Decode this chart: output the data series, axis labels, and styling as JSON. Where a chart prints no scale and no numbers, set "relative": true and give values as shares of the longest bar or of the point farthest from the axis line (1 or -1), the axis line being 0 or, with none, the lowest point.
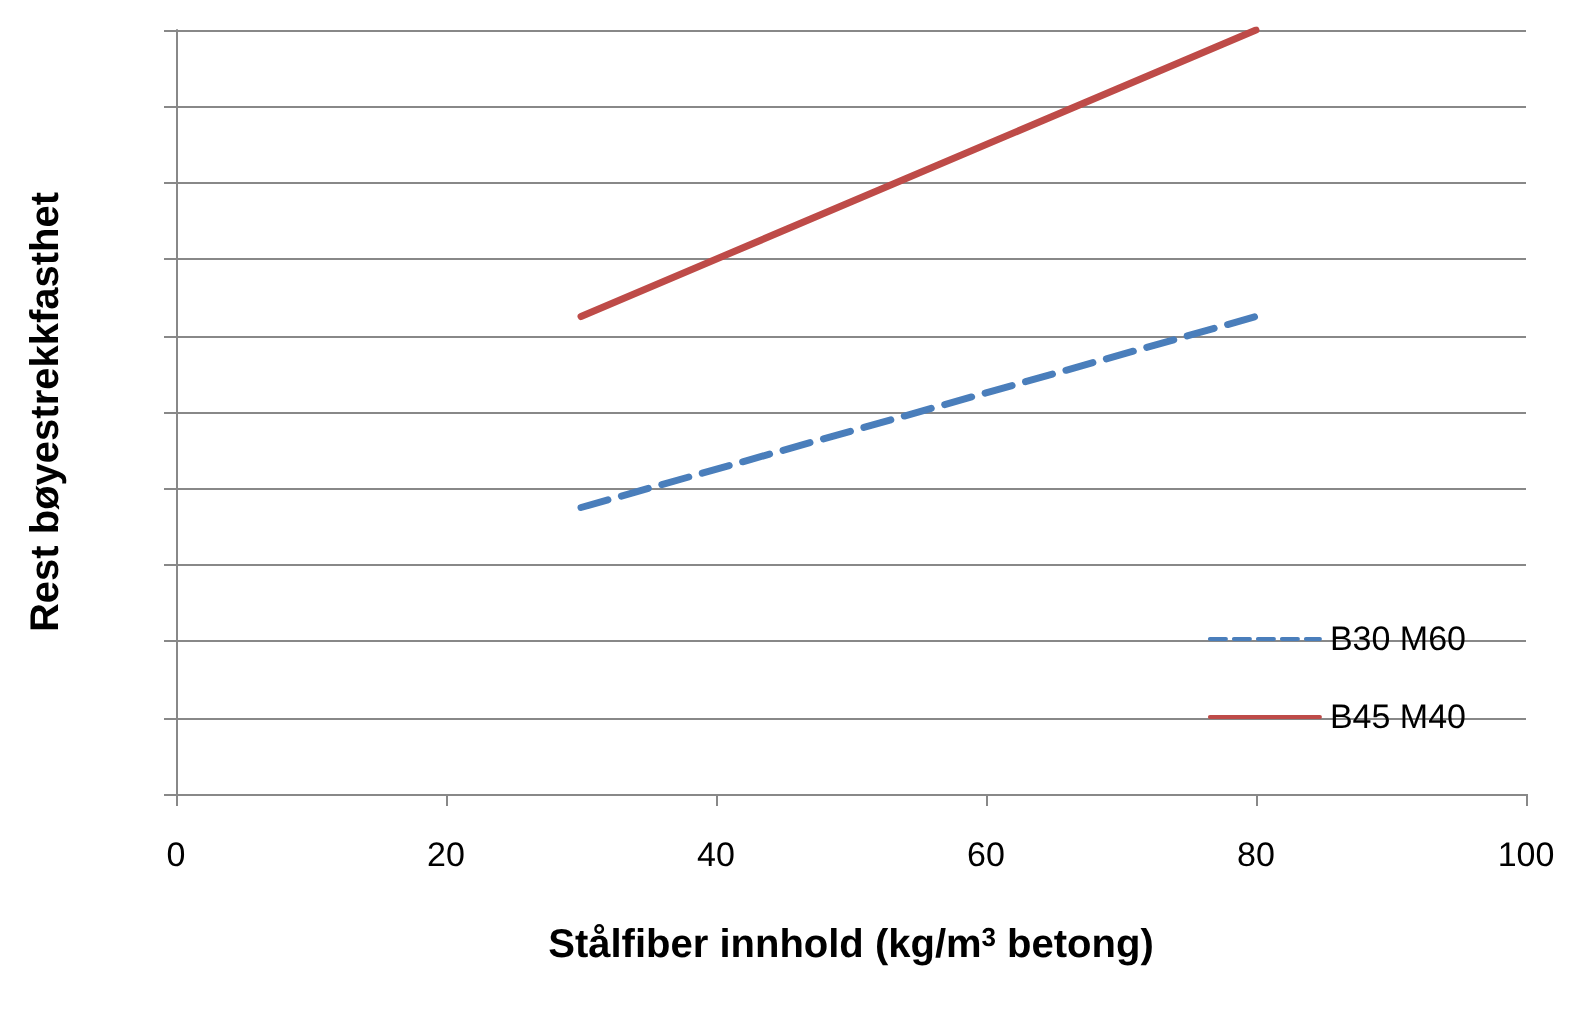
{
  "chart_data": {
    "type": "line",
    "relative": true,
    "xlabel": "Stålfiber innhold (kg/m$^{3}$ betong)",
    "ylabel": "Rest bøyestrekkfasthet",
    "xlim": [
      0,
      100
    ],
    "xticks": [
      0,
      20,
      40,
      60,
      80,
      100
    ],
    "x": [
      30,
      80
    ],
    "grid": "y",
    "legend": "bottom right",
    "marker": "none",
    "series": [
      {
        "name": "B30 M60",
        "color": "#4a7ebb",
        "line_style": "dashed",
        "values": [
          0.375,
          0.625
        ]
      },
      {
        "name": "B45 M40",
        "color": "#be4b48",
        "line_style": "solid",
        "values": [
          0.625,
          1
        ]
      }
    ]
  }
}
